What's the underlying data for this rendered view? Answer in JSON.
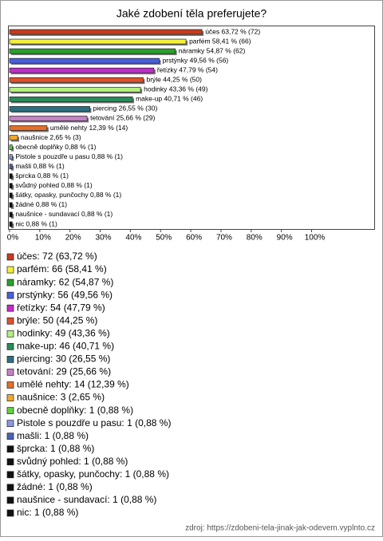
{
  "chart_data": {
    "type": "bar",
    "orientation": "horizontal",
    "title": "Jaké zdobení těla preferujete?",
    "categories": [
      "účes",
      "parfém",
      "náramky",
      "prstýnky",
      "řetízky",
      "brýle",
      "hodinky",
      "make-up",
      "piercing",
      "tetování",
      "umělé nehty",
      "naušnice",
      "obecně doplňky",
      "Pistole s pouzdře u pasu",
      "mašli",
      "šprcka",
      "svůdný pohled",
      "šátky, opasky, punčochy",
      "žádné",
      "naušnice - sundavací",
      "nic"
    ],
    "values": [
      63.72,
      58.41,
      54.87,
      49.56,
      47.79,
      44.25,
      43.36,
      40.71,
      26.55,
      25.66,
      12.39,
      2.65,
      0.88,
      0.88,
      0.88,
      0.88,
      0.88,
      0.88,
      0.88,
      0.88,
      0.88
    ],
    "value_labels": [
      "účes 63,72 % (72)",
      "parfém 58,41 % (66)",
      "náramky 54,87 % (62)",
      "prstýnky 49,56 % (56)",
      "řetízky 47,79 % (54)",
      "brýle 44,25 % (50)",
      "hodinky 43,36 % (49)",
      "make-up 40,71 % (46)",
      "piercing 26,55 % (30)",
      "tetování 25,66 % (29)",
      "umělé nehty 12,39 % (14)",
      "naušnice 2,65 % (3)",
      "obecně doplňky 0,88 % (1)",
      "Pistole s pouzdře u pasu 0,88 % (1)",
      "mašli 0,88 % (1)",
      "šprcka 0,88 % (1)",
      "svůdný pohled 0,88 % (1)",
      "šátky, opasky, punčochy 0,88 % (1)",
      "žádné 0,88 % (1)",
      "naušnice - sundavací 0,88 % (1)",
      "nic 0,88 % (1)"
    ],
    "legend_labels": [
      "účes: 72 (63,72 %)",
      "parfém: 66 (58,41 %)",
      "náramky: 62 (54,87 %)",
      "prstýnky: 56 (49,56 %)",
      "řetízky: 54 (47,79 %)",
      "brýle: 50 (44,25 %)",
      "hodinky: 49 (43,36 %)",
      "make-up: 46 (40,71 %)",
      "piercing: 30 (26,55 %)",
      "tetování: 29 (25,66 %)",
      "umělé nehty: 14 (12,39 %)",
      "naušnice: 3 (2,65 %)",
      "obecně doplňky: 1 (0,88 %)",
      "Pistole s pouzdře u pasu: 1 (0,88 %)",
      "mašli: 1 (0,88 %)",
      "šprcka: 1 (0,88 %)",
      "svůdný pohled: 1 (0,88 %)",
      "šátky, opasky, punčochy: 1 (0,88 %)",
      "žádné: 1 (0,88 %)",
      "naušnice - sundavací: 1 (0,88 %)",
      "nic: 1 (0,88 %)"
    ],
    "colors": [
      "#c83a1e",
      "#f4ef3a",
      "#2aa02a",
      "#4a5ee0",
      "#c22ccc",
      "#e0502a",
      "#b4f080",
      "#2a8a5a",
      "#2a7080",
      "#c482c4",
      "#e0702a",
      "#f0a82a",
      "#62d042",
      "#8898e8",
      "#4a64b4",
      "#111111",
      "#111111",
      "#111111",
      "#111111",
      "#111111",
      "#111111"
    ],
    "xlim": [
      0,
      121
    ],
    "xticks": [
      {
        "value": 0,
        "label": "0%"
      },
      {
        "value": 10,
        "label": "10%"
      },
      {
        "value": 20,
        "label": "20%"
      },
      {
        "value": 30,
        "label": "30%"
      },
      {
        "value": 40,
        "label": "40%"
      },
      {
        "value": 50,
        "label": "50%"
      },
      {
        "value": 60,
        "label": "60%"
      },
      {
        "value": 70,
        "label": "70%"
      },
      {
        "value": 80,
        "label": "80%"
      },
      {
        "value": 90,
        "label": "90%"
      },
      {
        "value": 100,
        "label": "100%"
      }
    ],
    "source": "zdroj: https://zdobeni-tela-jinak-jak-odevem.vyplnto.cz"
  }
}
